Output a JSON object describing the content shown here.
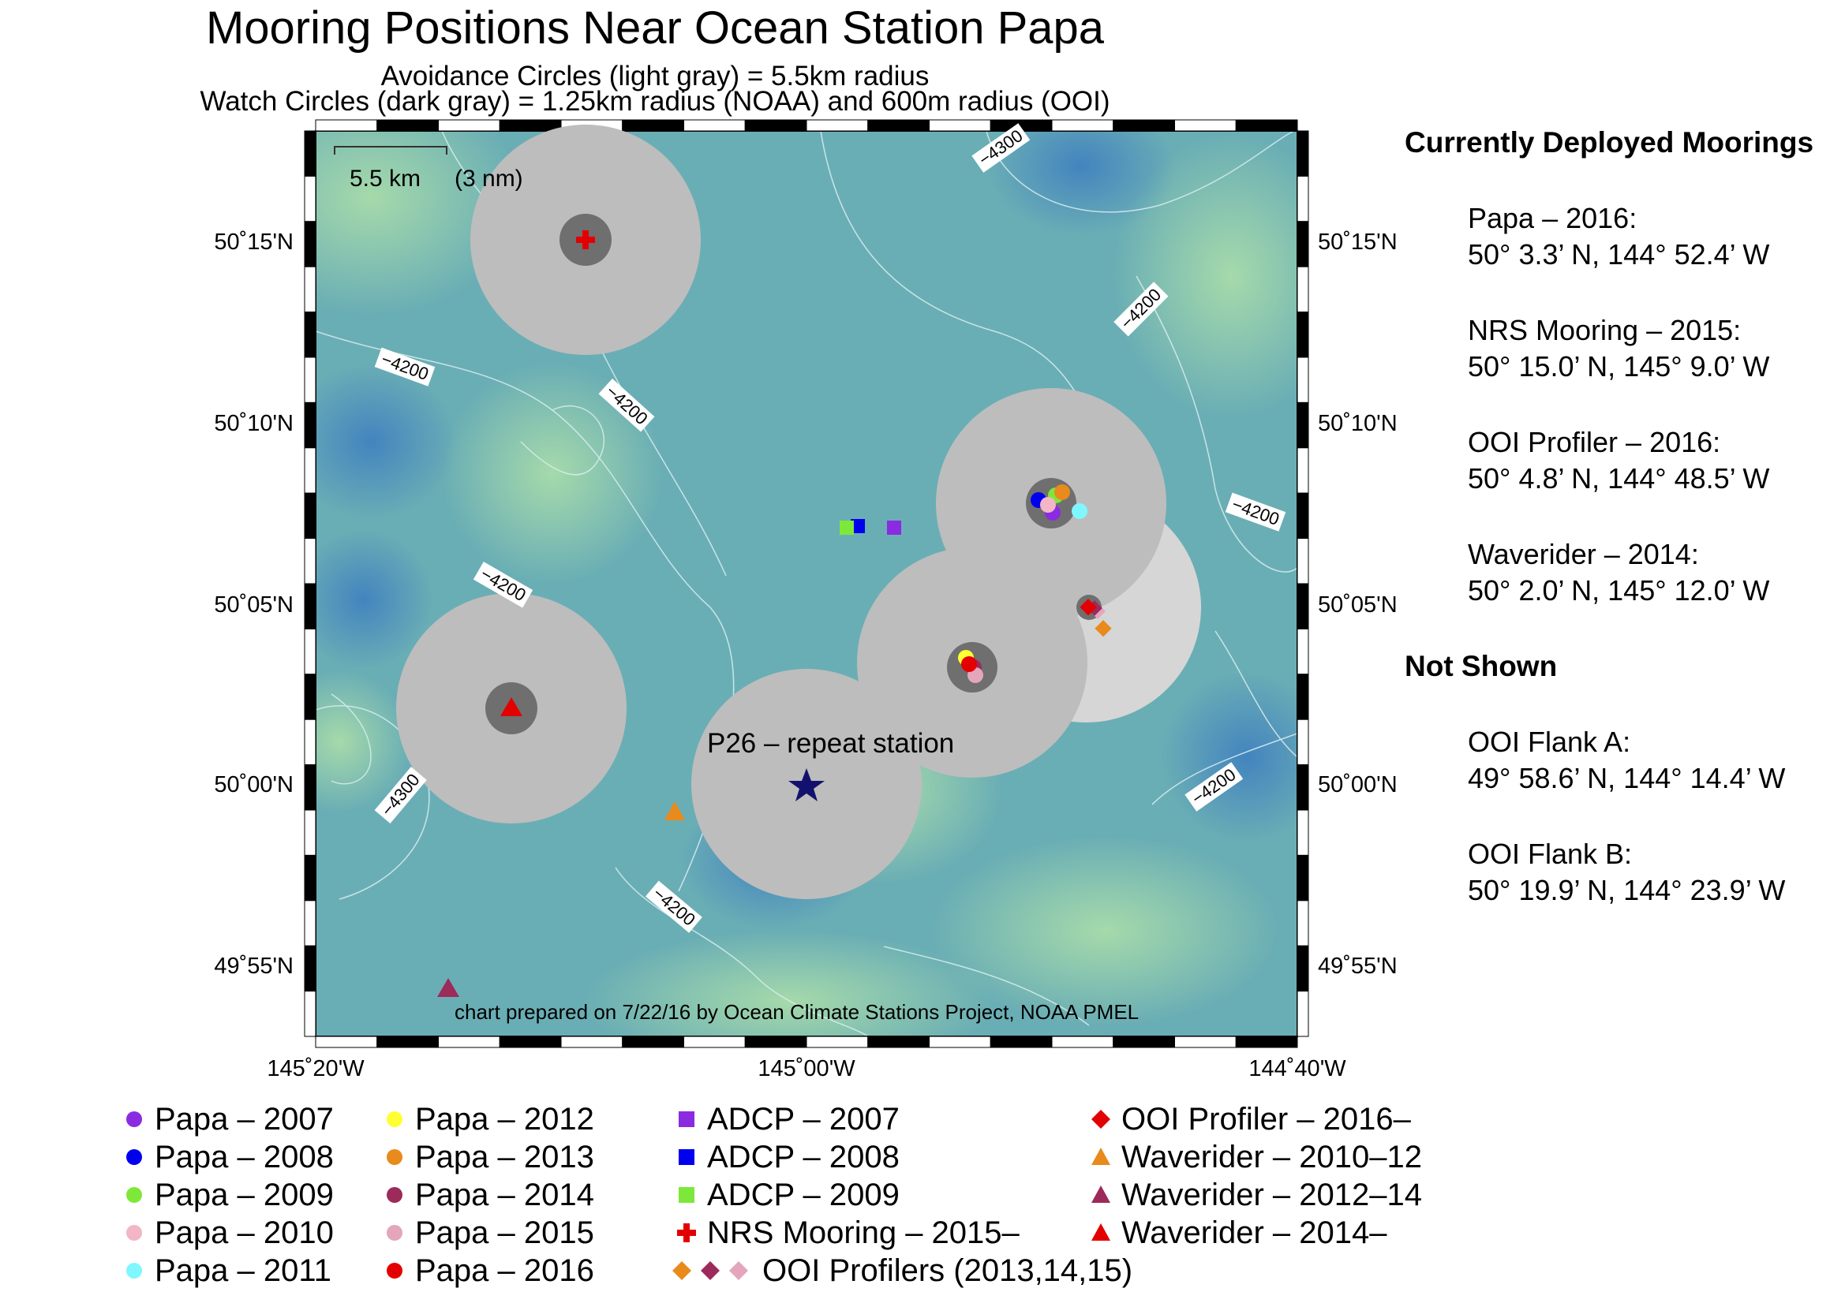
{
  "title": "Mooring Positions Near Ocean Station Papa",
  "subtitle1": "Avoidance Circles (light gray) = 5.5km radius",
  "subtitle2": "Watch Circles (dark gray) = 1.25km radius (NOAA) and 600m radius (OOI)",
  "map": {
    "scale_bar_label": "5.5 km",
    "scale_bar_nm": "(3 nm)",
    "station_label": "P26 – repeat station",
    "credit": "chart prepared on 7/22/16 by Ocean Climate Stations Project, NOAA PMEL",
    "lat_labels": [
      "50˚15'N",
      "50˚10'N",
      "50˚05'N",
      "50˚00'N",
      "49˚55'N"
    ],
    "lon_labels": [
      "145˚20'W",
      "145˚00'W",
      "144˚40'W"
    ],
    "contour_labels": [
      "−4300",
      "−4200",
      "−4200",
      "−4200",
      "−4200",
      "−4200",
      "−4300",
      "−4200",
      "−4200"
    ],
    "colors": {
      "avoidance_circle": "#bdbdbd",
      "avoidance_circle_light": "#d6d6d6",
      "watch_circle": "#6f6f6f",
      "ocean_mid": "#6aaeb5",
      "ocean_deep": "#4b8fbd",
      "ocean_shallow": "#9fd6a8"
    }
  },
  "sidebar": {
    "heading_current": "Currently Deployed Moorings",
    "current": [
      {
        "name": "Papa – 2016:",
        "coord": "50° 3.3’ N, 144° 52.4’ W"
      },
      {
        "name": "NRS Mooring – 2015:",
        "coord": "50° 15.0’ N, 145° 9.0’ W"
      },
      {
        "name": "OOI Profiler – 2016:",
        "coord": "50° 4.8’ N, 144° 48.5’ W"
      },
      {
        "name": "Waverider – 2014:",
        "coord": "50° 2.0’ N, 145° 12.0’ W"
      }
    ],
    "heading_not_shown": "Not Shown",
    "not_shown": [
      {
        "name": "OOI Flank A:",
        "coord": "49° 58.6’ N, 144° 14.4’ W"
      },
      {
        "name": "OOI Flank B:",
        "coord": "50° 19.9’ N, 144° 23.9’ W"
      }
    ]
  },
  "legend": [
    {
      "label": "Papa – 2007",
      "symbol": "circle",
      "color": "#8a2be2"
    },
    {
      "label": "Papa – 2008",
      "symbol": "circle",
      "color": "#0000ee"
    },
    {
      "label": "Papa – 2009",
      "symbol": "circle",
      "color": "#7ee83a"
    },
    {
      "label": "Papa – 2010",
      "symbol": "circle",
      "color": "#f2b6c6"
    },
    {
      "label": "Papa – 2011",
      "symbol": "circle",
      "color": "#7ff7ff"
    },
    {
      "label": "Papa – 2012",
      "symbol": "circle",
      "color": "#ffff33"
    },
    {
      "label": "Papa – 2013",
      "symbol": "circle",
      "color": "#e88a1c"
    },
    {
      "label": "Papa – 2014",
      "symbol": "circle",
      "color": "#9c2a5a"
    },
    {
      "label": "Papa – 2015",
      "symbol": "circle",
      "color": "#e3a6bc"
    },
    {
      "label": "Papa – 2016",
      "symbol": "circle",
      "color": "#e30000"
    },
    {
      "label": "ADCP – 2007",
      "symbol": "square",
      "color": "#8a2be2"
    },
    {
      "label": "ADCP – 2008",
      "symbol": "square",
      "color": "#0000ee"
    },
    {
      "label": "ADCP – 2009",
      "symbol": "square",
      "color": "#7ee83a"
    },
    {
      "label": "NRS Mooring – 2015–",
      "symbol": "cross",
      "color": "#e30000"
    },
    {
      "label": "OOI Profilers (2013,14,15)",
      "symbol": "three-diamonds",
      "colors": [
        "#e88a1c",
        "#9c2a5a",
        "#e3a6bc"
      ]
    },
    {
      "label": "OOI Profiler – 2016–",
      "symbol": "diamond",
      "color": "#e30000"
    },
    {
      "label": "Waverider – 2010–12",
      "symbol": "triangle",
      "color": "#e88a1c"
    },
    {
      "label": "Waverider – 2012–14",
      "symbol": "triangle",
      "color": "#9c2a5a"
    },
    {
      "label": "Waverider – 2014–",
      "symbol": "triangle",
      "color": "#e30000"
    }
  ]
}
